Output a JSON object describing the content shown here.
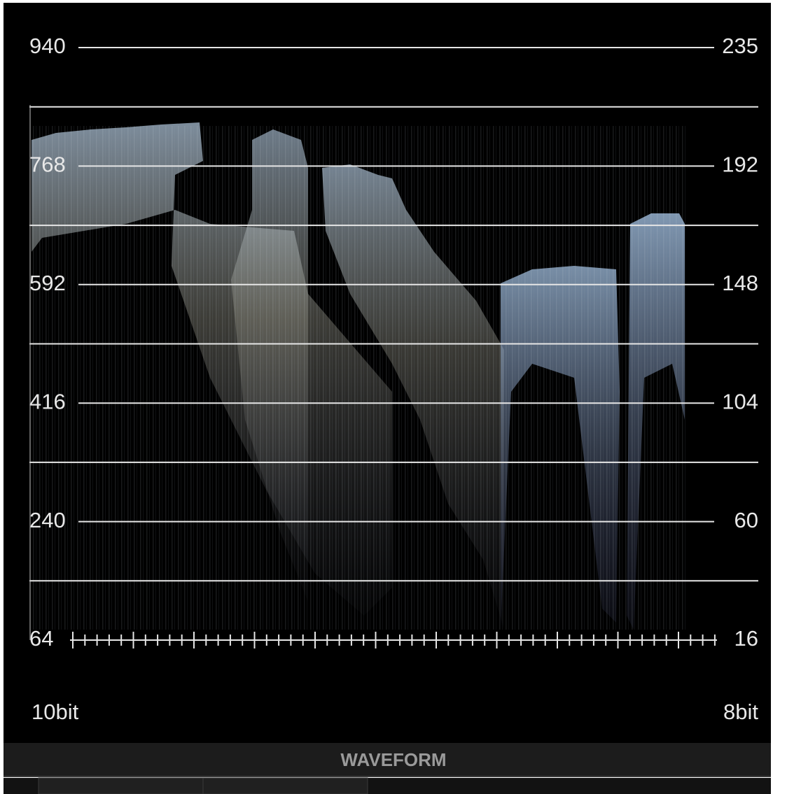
{
  "scope": {
    "left_labels": [
      "940",
      "768",
      "592",
      "416",
      "240",
      "64"
    ],
    "right_labels": [
      "235",
      "192",
      "148",
      "104",
      "60",
      "16"
    ],
    "left_unit": "10bit",
    "right_unit": "8bit"
  },
  "panel": {
    "title": "WAVEFORM"
  }
}
